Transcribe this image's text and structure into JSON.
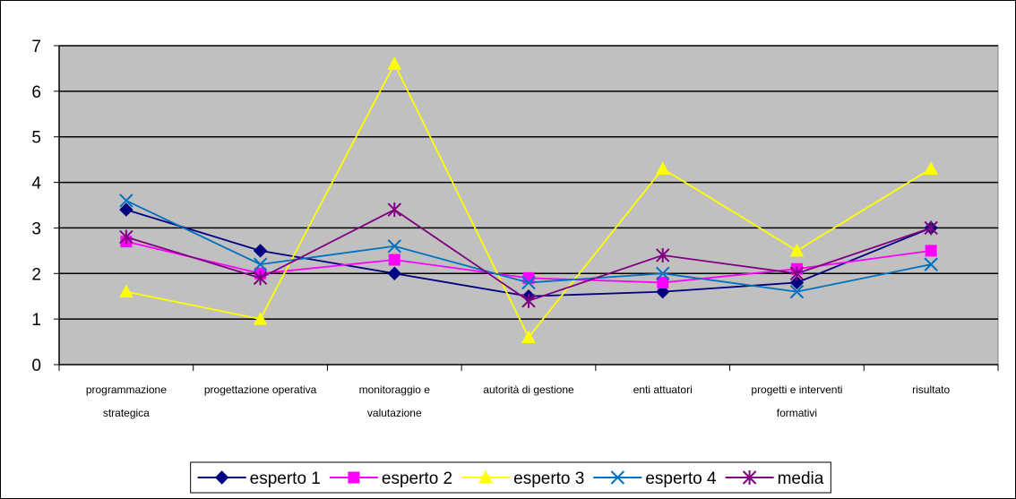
{
  "chart_data": {
    "type": "line",
    "categories": [
      [
        "programmazione",
        "strategica"
      ],
      [
        "progettazione operativa"
      ],
      [
        "monitoraggio e",
        "valutazione"
      ],
      [
        "autorità di gestione"
      ],
      [
        "enti attuatori"
      ],
      [
        "progetti e interventi",
        "formativi"
      ],
      [
        "risultato"
      ]
    ],
    "ylim": [
      0,
      7
    ],
    "yticks": [
      0,
      1,
      2,
      3,
      4,
      5,
      6,
      7
    ],
    "grid": true,
    "plot_background": "#C0C0C0",
    "legend_position": "bottom",
    "series": [
      {
        "name": "esperto 1",
        "color": "#000080",
        "marker": "diamond",
        "values": [
          3.4,
          2.5,
          2.0,
          1.5,
          1.6,
          1.8,
          3.0
        ]
      },
      {
        "name": "esperto 2",
        "color": "#FF00FF",
        "marker": "square",
        "values": [
          2.7,
          2.0,
          2.3,
          1.9,
          1.8,
          2.1,
          2.5
        ]
      },
      {
        "name": "esperto 3",
        "color": "#FFFF00",
        "marker": "triangle",
        "values": [
          1.6,
          1.0,
          6.6,
          0.6,
          4.3,
          2.5,
          4.3
        ]
      },
      {
        "name": "esperto 4",
        "color": "#0070C0",
        "marker": "x",
        "values": [
          3.6,
          2.2,
          2.6,
          1.8,
          2.0,
          1.6,
          2.2
        ]
      },
      {
        "name": "media",
        "color": "#800080",
        "marker": "star",
        "values": [
          2.8,
          1.9,
          3.4,
          1.4,
          2.4,
          2.0,
          3.0
        ]
      }
    ]
  }
}
